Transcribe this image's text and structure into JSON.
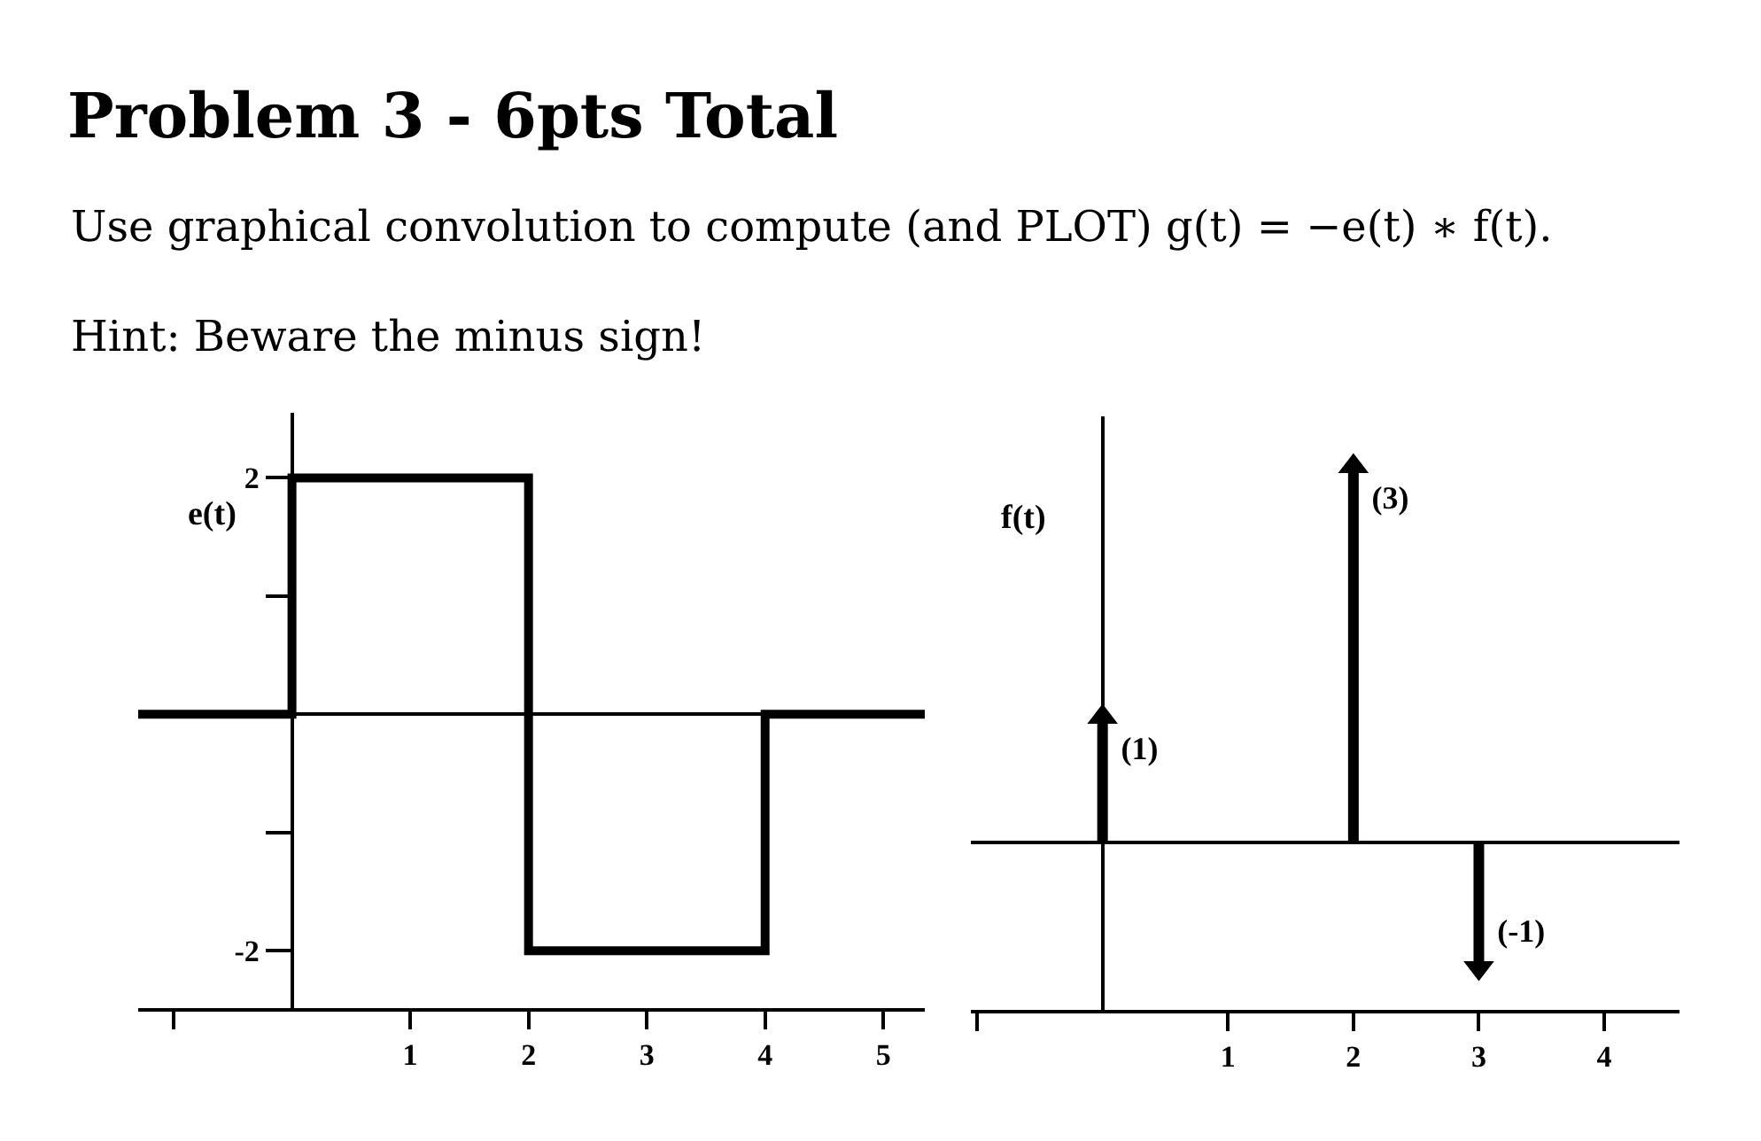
{
  "chart_data": [
    {
      "type": "step",
      "title": "Problem 3 - 6pts Total",
      "subtitle": "Use graphical convolution to compute (and PLOT) g(t) = −e(t) ∗ f(t).",
      "annotations": [
        "Hint: Beware the minus sign!"
      ],
      "ylabel": "e(t)",
      "x": [
        -1.3,
        0,
        2,
        4,
        5.35
      ],
      "series": [
        {
          "color": "#000000",
          "values": [
            0,
            2,
            -2,
            0,
            0
          ]
        }
      ],
      "xlim": [
        -1.3,
        5.35
      ],
      "ylim": [
        -2.5,
        2.55
      ],
      "xticks": [
        {
          "value": -1,
          "label": null
        },
        1,
        2,
        3,
        4,
        5
      ],
      "yticks": [
        -2,
        {
          "value": -1,
          "label": null
        },
        {
          "value": 1,
          "label": null
        },
        2
      ]
    },
    {
      "type": "lollipop",
      "ylabel": "f(t)",
      "x": [
        0,
        2,
        3
      ],
      "series": [
        {
          "color": "#000000",
          "values": [
            1,
            3,
            -1
          ],
          "value_labels": [
            "(1)",
            "(3)",
            "(-1)"
          ]
        }
      ],
      "marker": "triangle",
      "xlim": [
        -1.05,
        4.6
      ],
      "ylim": [
        -1.35,
        3.4
      ],
      "xticks": [
        {
          "value": -1,
          "label": null
        },
        1,
        2,
        3,
        4
      ],
      "tick_labels": "x"
    }
  ]
}
